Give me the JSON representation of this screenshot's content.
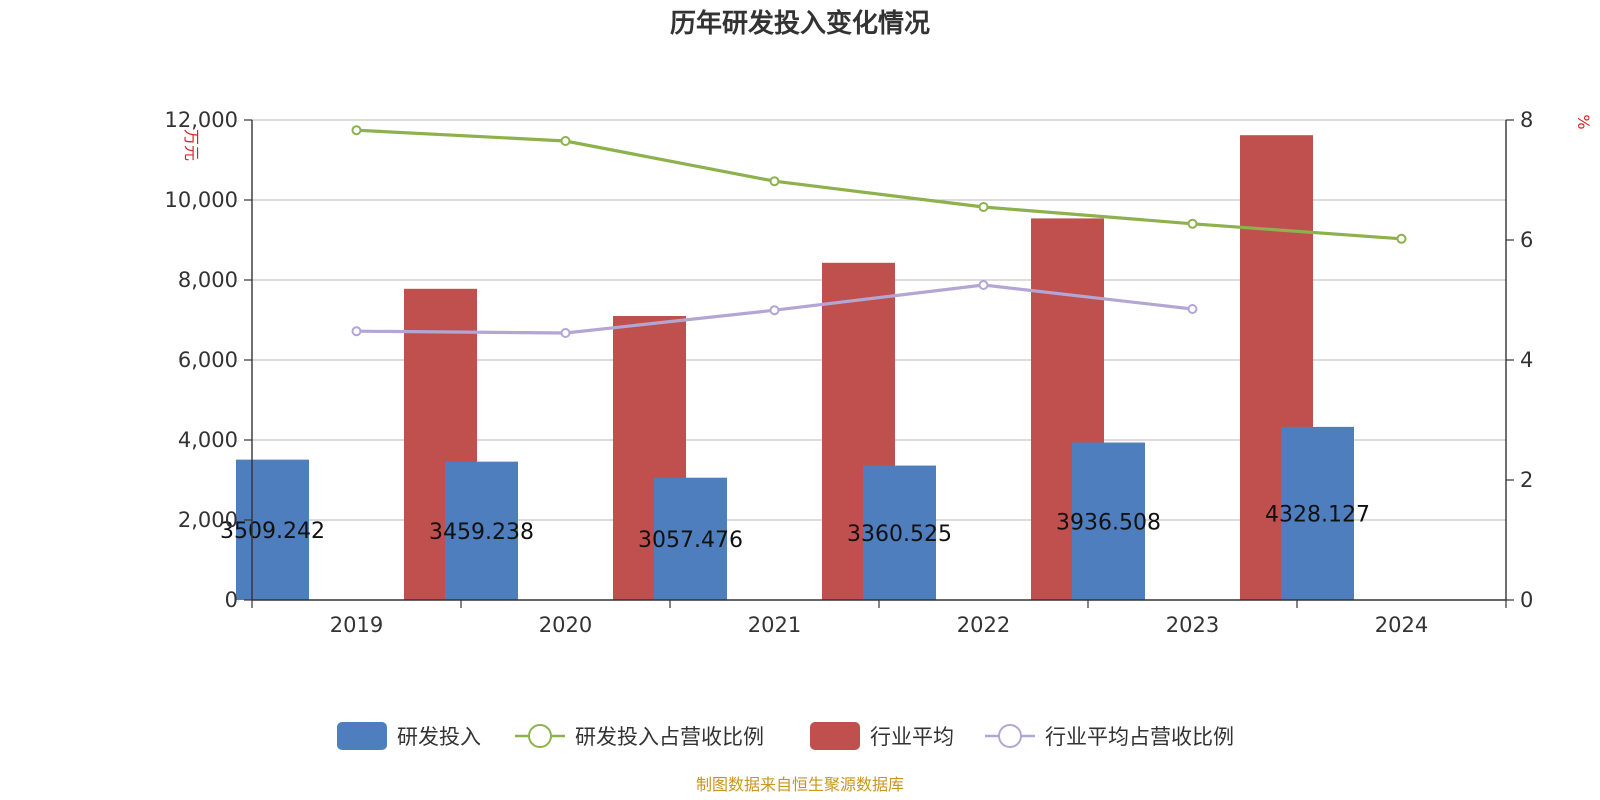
{
  "chart_data": {
    "type": "bar",
    "title": "历年研发投入变化情况",
    "categories": [
      "2019",
      "2020",
      "2021",
      "2022",
      "2023",
      "2024"
    ],
    "y_left": {
      "unit": "万元",
      "ylim": [
        0,
        12000
      ],
      "ticks": [
        "0",
        "2,000",
        "4,000",
        "6,000",
        "8,000",
        "10,000",
        "12,000"
      ]
    },
    "y_right": {
      "unit": "%",
      "ylim": [
        0,
        8
      ],
      "ticks": [
        "0",
        "2",
        "4",
        "6",
        "8"
      ]
    },
    "series": [
      {
        "name": "研发投入",
        "kind": "bar",
        "axis": "left",
        "color": "#4f7ebe",
        "values": [
          3509.242,
          3459.238,
          3057.476,
          3360.525,
          3936.508,
          4328.127
        ],
        "labels": [
          "3509.242",
          "3459.238",
          "3057.476",
          "3360.525",
          "3936.508",
          "4328.127"
        ]
      },
      {
        "name": "研发投入占营收比例",
        "kind": "line",
        "axis": "right",
        "color": "#8db14d",
        "values": [
          7.83,
          7.65,
          6.98,
          6.55,
          6.27,
          6.02
        ]
      },
      {
        "name": "行业平均",
        "kind": "bar",
        "axis": "left",
        "color": "#c0504d",
        "values": [
          7780,
          7100,
          8430,
          9540,
          11620,
          null
        ]
      },
      {
        "name": "行业平均占营收比例",
        "kind": "line",
        "axis": "right",
        "color": "#b3a6d4",
        "values": [
          4.48,
          4.45,
          4.83,
          5.25,
          4.85,
          null
        ]
      }
    ],
    "grid": true,
    "legend_position": "bottom-center"
  },
  "source_note": "制图数据来自恒生聚源数据库"
}
